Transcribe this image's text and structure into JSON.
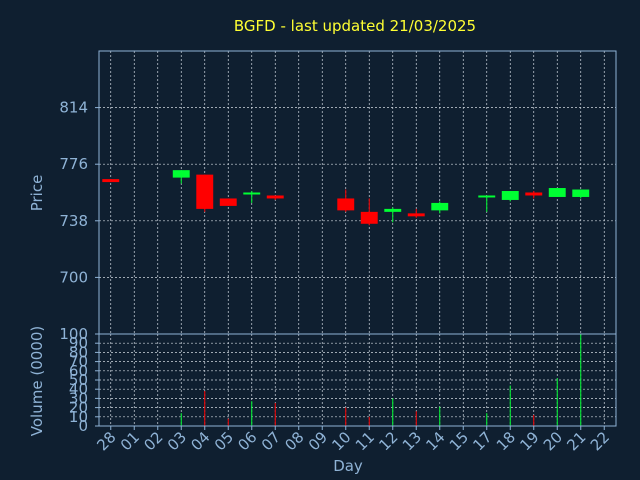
{
  "chart_data": {
    "type": "candlestick",
    "title": "BGFD - last updated 21/03/2025",
    "xlabel": "Day",
    "colors": {
      "up": "#00ff33",
      "down": "#ff0000",
      "title": "#ffff33",
      "axis": "#8fb3d6",
      "background": "#0f1f30"
    },
    "categories": [
      "28",
      "01",
      "02",
      "03",
      "04",
      "05",
      "06",
      "07",
      "08",
      "09",
      "10",
      "11",
      "12",
      "13",
      "14",
      "15",
      "17",
      "18",
      "19",
      "20",
      "21",
      "22"
    ],
    "price_panel": {
      "ylabel": "Price",
      "yticks": [
        700,
        738,
        776,
        814
      ],
      "ylim": [
        662,
        852
      ],
      "grid": true
    },
    "volume_panel": {
      "ylabel": "Volume (0000)",
      "yticks": [
        0,
        10,
        20,
        30,
        40,
        50,
        60,
        70,
        80,
        90,
        100
      ],
      "ytick_labels": [
        "0",
        "10",
        "20",
        "30",
        "40",
        "50",
        "60",
        "70",
        "80",
        "90",
        "100"
      ],
      "ylim": [
        0,
        100
      ],
      "grid": true
    },
    "series": [
      {
        "day": "28",
        "open": 766,
        "high": 766,
        "low": 764,
        "close": 764,
        "volume": 0
      },
      {
        "day": "03",
        "open": 767,
        "high": 772,
        "low": 763,
        "close": 772,
        "volume": 14
      },
      {
        "day": "04",
        "open": 769,
        "high": 769,
        "low": 744,
        "close": 746,
        "volume": 38
      },
      {
        "day": "05",
        "open": 753,
        "high": 753,
        "low": 748,
        "close": 748,
        "volume": 8
      },
      {
        "day": "06",
        "open": 756,
        "high": 758,
        "low": 750,
        "close": 757,
        "volume": 27
      },
      {
        "day": "07",
        "open": 755,
        "high": 755,
        "low": 752,
        "close": 753,
        "volume": 25
      },
      {
        "day": "10",
        "open": 753,
        "high": 759,
        "low": 744,
        "close": 745,
        "volume": 20
      },
      {
        "day": "11",
        "open": 744,
        "high": 753,
        "low": 735,
        "close": 736,
        "volume": 10
      },
      {
        "day": "12",
        "open": 744,
        "high": 747,
        "low": 737,
        "close": 746,
        "volume": 30
      },
      {
        "day": "13",
        "open": 743,
        "high": 746,
        "low": 740,
        "close": 741,
        "volume": 16
      },
      {
        "day": "14",
        "open": 745,
        "high": 751,
        "low": 743,
        "close": 750,
        "volume": 21
      },
      {
        "day": "17",
        "open": 754,
        "high": 755,
        "low": 744,
        "close": 755,
        "volume": 14
      },
      {
        "day": "18",
        "open": 752,
        "high": 758,
        "low": 751,
        "close": 758,
        "volume": 44
      },
      {
        "day": "19",
        "open": 757,
        "high": 758,
        "low": 753,
        "close": 755,
        "volume": 12
      },
      {
        "day": "20",
        "open": 754,
        "high": 760,
        "low": 754,
        "close": 760,
        "volume": 52
      },
      {
        "day": "21",
        "open": 754,
        "high": 759,
        "low": 753,
        "close": 759,
        "volume": 100
      }
    ]
  }
}
